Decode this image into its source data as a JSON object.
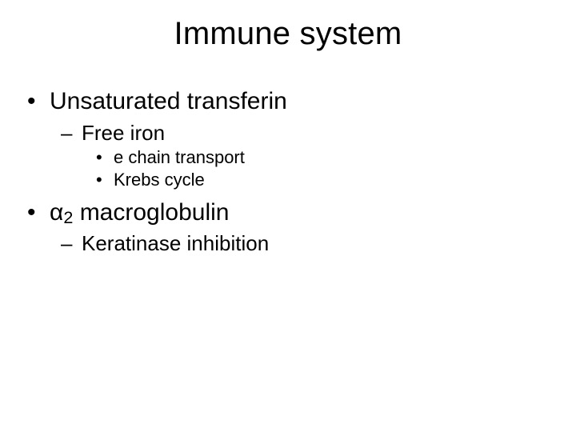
{
  "slide": {
    "title": "Immune system",
    "title_fontsize": 40,
    "bullets": {
      "b1": "Unsaturated transferin",
      "b1_1": "Free iron",
      "b1_1_1": "e chain transport",
      "b1_1_2": "Krebs cycle",
      "b2_prefix": "α",
      "b2_sub": "2",
      "b2_suffix": " macroglobulin",
      "b2_1": "Keratinase inhibition"
    },
    "colors": {
      "background": "#ffffff",
      "text": "#000000"
    },
    "fonts": {
      "family": "Arial",
      "l1_size": 30,
      "l2_size": 26,
      "l3_size": 22
    }
  }
}
